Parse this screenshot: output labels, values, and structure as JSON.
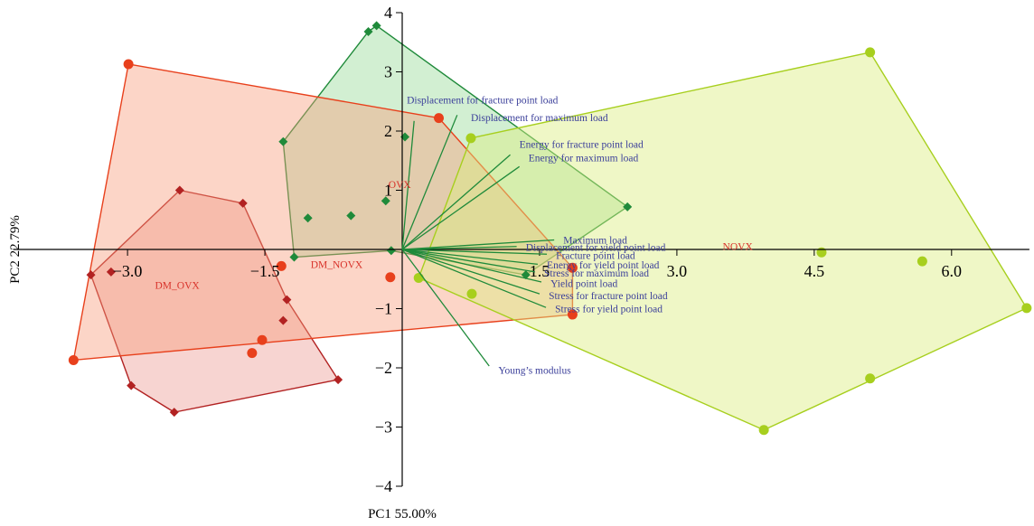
{
  "chart_data": {
    "type": "scatter",
    "subtype": "pca-biplot",
    "title": "",
    "xlabel": "PC1 55.00%",
    "ylabel": "PC2 22.79%",
    "xlim": [
      -4.25,
      6.85
    ],
    "ylim": [
      -4.0,
      4.0
    ],
    "x_ticks": [
      {
        "value": -3.0,
        "label": "−3.0"
      },
      {
        "value": -1.5,
        "label": "−1.5"
      },
      {
        "value": 1.5,
        "label": "1.5"
      },
      {
        "value": 3.0,
        "label": "3.0"
      },
      {
        "value": 4.5,
        "label": "4.5"
      },
      {
        "value": 6.0,
        "label": "6.0"
      }
    ],
    "y_ticks": [
      {
        "value": 4,
        "label": "4"
      },
      {
        "value": 3,
        "label": "3"
      },
      {
        "value": 2,
        "label": "2"
      },
      {
        "value": 1,
        "label": "1"
      },
      {
        "value": -1,
        "label": "−1"
      },
      {
        "value": -2,
        "label": "−2"
      },
      {
        "value": -3,
        "label": "−3"
      },
      {
        "value": -4,
        "label": "−4"
      }
    ],
    "grid": false,
    "legend": "none",
    "groups": [
      {
        "name": "DM_OVX",
        "marker": "diamond",
        "color": "#b22222",
        "fill": "#e8847b",
        "fill_opacity": 0.35,
        "label_at": [
          -2.7,
          -0.6
        ],
        "points": [
          [
            -2.43,
            1.0
          ],
          [
            -1.74,
            0.78
          ],
          [
            -3.4,
            -0.43
          ],
          [
            -3.18,
            -0.38
          ],
          [
            -2.96,
            -2.3
          ],
          [
            -2.49,
            -2.75
          ],
          [
            -1.26,
            -0.85
          ],
          [
            -1.3,
            -1.2
          ],
          [
            -0.7,
            -2.2
          ]
        ],
        "hull": [
          [
            -2.43,
            1.0
          ],
          [
            -1.74,
            0.78
          ],
          [
            -1.26,
            -0.85
          ],
          [
            -0.7,
            -2.2
          ],
          [
            -2.49,
            -2.75
          ],
          [
            -2.96,
            -2.3
          ],
          [
            -3.4,
            -0.43
          ]
        ]
      },
      {
        "name": "DM_NOVX",
        "marker": "diamond",
        "color": "#1f8a3a",
        "fill": "#7ed07e",
        "fill_opacity": 0.35,
        "label_at": [
          -1.0,
          -0.25
        ],
        "points": [
          [
            -0.37,
            3.68
          ],
          [
            -0.28,
            3.78
          ],
          [
            -1.3,
            1.82
          ],
          [
            -1.03,
            0.53
          ],
          [
            -0.56,
            0.57
          ],
          [
            -0.18,
            0.82
          ],
          [
            -0.12,
            -0.02
          ],
          [
            -1.18,
            -0.13
          ],
          [
            2.46,
            0.72
          ],
          [
            1.35,
            -0.43
          ],
          [
            0.03,
            1.9
          ]
        ],
        "hull": [
          [
            -0.28,
            3.78
          ],
          [
            2.46,
            0.72
          ],
          [
            1.35,
            -0.43
          ],
          [
            -0.12,
            -0.02
          ],
          [
            -1.18,
            -0.13
          ],
          [
            -1.3,
            1.82
          ],
          [
            -0.37,
            3.68
          ]
        ]
      },
      {
        "name": "OVX",
        "marker": "circle",
        "color": "#e8401c",
        "fill": "#f79a7a",
        "fill_opacity": 0.42,
        "label_at": [
          -0.15,
          1.1
        ],
        "points": [
          [
            -2.99,
            3.13
          ],
          [
            0.4,
            2.22
          ],
          [
            1.86,
            -0.31
          ],
          [
            1.86,
            -1.1
          ],
          [
            -1.32,
            -0.28
          ],
          [
            -0.13,
            -0.47
          ],
          [
            -1.53,
            -1.53
          ],
          [
            -1.64,
            -1.75
          ],
          [
            -3.59,
            -1.87
          ]
        ],
        "hull": [
          [
            -2.99,
            3.13
          ],
          [
            0.4,
            2.22
          ],
          [
            1.86,
            -0.31
          ],
          [
            1.86,
            -1.1
          ],
          [
            -3.59,
            -1.87
          ]
        ]
      },
      {
        "name": "NOVX",
        "marker": "circle",
        "color": "#a7cf1e",
        "fill": "#dbee80",
        "fill_opacity": 0.45,
        "label_at": [
          3.5,
          0.05
        ],
        "points": [
          [
            5.11,
            3.33
          ],
          [
            6.82,
            -0.99
          ],
          [
            5.11,
            -2.18
          ],
          [
            3.95,
            -3.05
          ],
          [
            4.58,
            -0.05
          ],
          [
            5.68,
            -0.2
          ],
          [
            0.18,
            -0.48
          ],
          [
            0.76,
            -0.75
          ],
          [
            0.75,
            1.88
          ]
        ],
        "hull": [
          [
            0.75,
            1.88
          ],
          [
            5.11,
            3.33
          ],
          [
            6.82,
            -0.99
          ],
          [
            3.95,
            -3.05
          ],
          [
            0.18,
            -0.48
          ]
        ]
      }
    ],
    "loadings": [
      {
        "name": "Displacement for fracture point load",
        "end": [
          0.13,
          2.17
        ],
        "label_at": [
          0.05,
          2.53
        ]
      },
      {
        "name": "Displacement for maximum load",
        "end": [
          0.6,
          2.27
        ],
        "label_at": [
          0.75,
          2.23
        ]
      },
      {
        "name": "Energy for fracture point load",
        "end": [
          1.18,
          1.6
        ],
        "label_at": [
          1.28,
          1.78
        ]
      },
      {
        "name": "Energy for maximum load",
        "end": [
          1.28,
          1.4
        ],
        "label_at": [
          1.38,
          1.55
        ]
      },
      {
        "name": "Maximum load",
        "end": [
          1.66,
          0.16
        ],
        "label_at": [
          1.76,
          0.16
        ]
      },
      {
        "name": "Displacement for yield point load",
        "end": [
          1.25,
          0.05
        ],
        "label_at": [
          1.35,
          0.04
        ]
      },
      {
        "name": "Fracture point load",
        "end": [
          1.58,
          -0.08
        ],
        "label_at": [
          1.68,
          -0.1
        ]
      },
      {
        "name": "Energy for yield point load",
        "end": [
          1.48,
          -0.25
        ],
        "label_at": [
          1.58,
          -0.26
        ]
      },
      {
        "name": "Stress for maximum load",
        "end": [
          1.45,
          -0.38
        ],
        "label_at": [
          1.55,
          -0.4
        ]
      },
      {
        "name": "Yield point load",
        "end": [
          1.52,
          -0.55
        ],
        "label_at": [
          1.62,
          -0.57
        ]
      },
      {
        "name": "Stress for fracture point load",
        "end": [
          1.5,
          -0.75
        ],
        "label_at": [
          1.6,
          -0.78
        ]
      },
      {
        "name": "Stress for yield point load",
        "end": [
          1.57,
          -0.98
        ],
        "label_at": [
          1.67,
          -1.0
        ]
      },
      {
        "name": "Young’s modulus",
        "end": [
          0.95,
          -1.97
        ],
        "label_at": [
          1.05,
          -2.04
        ]
      }
    ],
    "loading_color": "#1f8a3a",
    "loading_label_color": "#3b3f9a"
  }
}
